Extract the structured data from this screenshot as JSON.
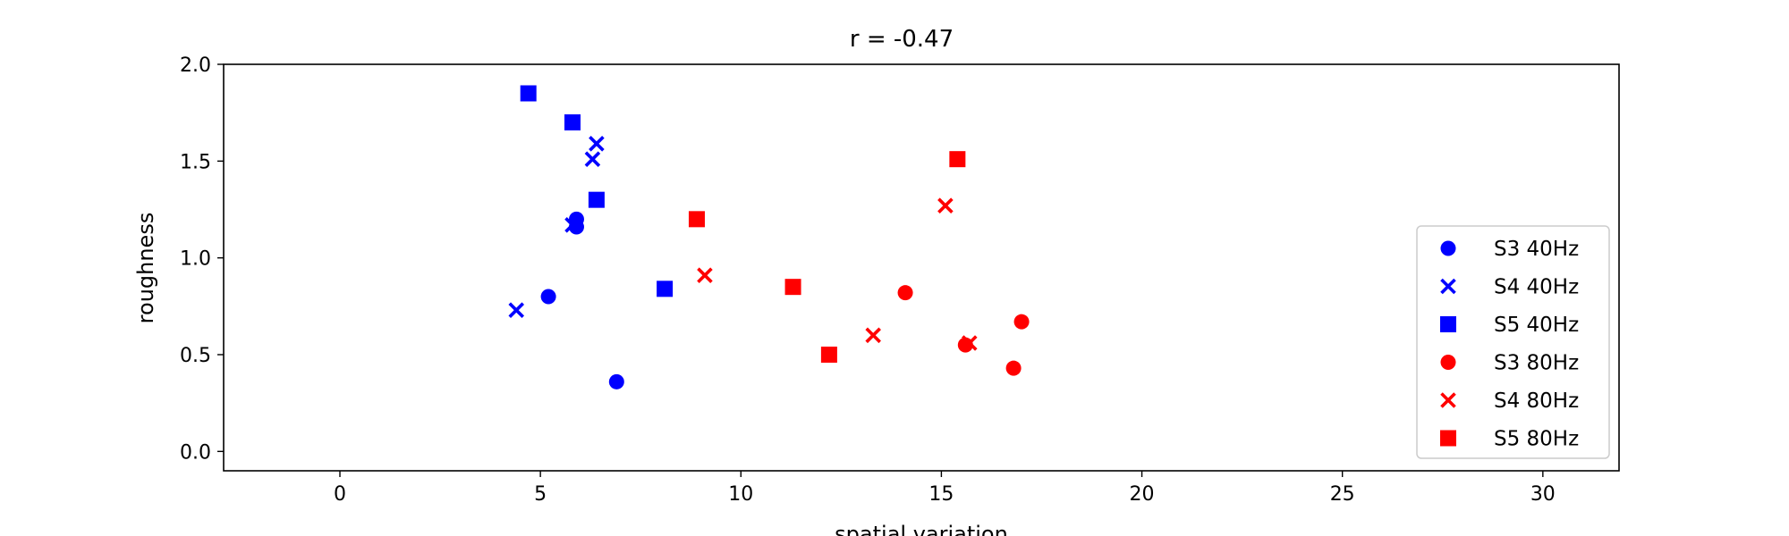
{
  "chart_data": {
    "type": "scatter",
    "title": "r = -0.47",
    "xlabel": "spatial variation",
    "ylabel": "roughness",
    "xlim": [
      -2.9,
      31.9
    ],
    "ylim": [
      -0.1,
      2.0
    ],
    "xticks": [
      0,
      5,
      10,
      15,
      20,
      25,
      30
    ],
    "yticks": [
      0.0,
      0.5,
      1.0,
      1.5,
      2.0
    ],
    "xtick_labels": [
      "0",
      "5",
      "10",
      "15",
      "20",
      "25",
      "30"
    ],
    "ytick_labels": [
      "0.0",
      "0.5",
      "1.0",
      "1.5",
      "2.0"
    ],
    "grid": false,
    "legend_position": "lower-right",
    "series": [
      {
        "name": "S3 40Hz",
        "marker": "circle",
        "color": "#0000ff",
        "points": [
          [
            5.2,
            0.8
          ],
          [
            5.9,
            1.2
          ],
          [
            5.9,
            1.16
          ],
          [
            6.9,
            0.36
          ]
        ]
      },
      {
        "name": "S4 40Hz",
        "marker": "x",
        "color": "#0000ff",
        "points": [
          [
            4.4,
            0.73
          ],
          [
            5.8,
            1.17
          ],
          [
            6.3,
            1.51
          ],
          [
            6.4,
            1.59
          ]
        ]
      },
      {
        "name": "S5 40Hz",
        "marker": "square",
        "color": "#0000ff",
        "points": [
          [
            4.7,
            1.85
          ],
          [
            5.8,
            1.7
          ],
          [
            6.4,
            1.3
          ],
          [
            8.1,
            0.84
          ]
        ]
      },
      {
        "name": "S3 80Hz",
        "marker": "circle",
        "color": "#ff0000",
        "points": [
          [
            14.1,
            0.82
          ],
          [
            15.6,
            0.55
          ],
          [
            16.8,
            0.43
          ],
          [
            17.0,
            0.67
          ]
        ]
      },
      {
        "name": "S4 80Hz",
        "marker": "x",
        "color": "#ff0000",
        "points": [
          [
            9.1,
            0.91
          ],
          [
            13.3,
            0.6
          ],
          [
            15.1,
            1.27
          ],
          [
            15.7,
            0.56
          ]
        ]
      },
      {
        "name": "S5 80Hz",
        "marker": "square",
        "color": "#ff0000",
        "points": [
          [
            8.9,
            1.2
          ],
          [
            11.3,
            0.85
          ],
          [
            12.2,
            0.5
          ],
          [
            15.4,
            1.51
          ]
        ]
      }
    ]
  }
}
